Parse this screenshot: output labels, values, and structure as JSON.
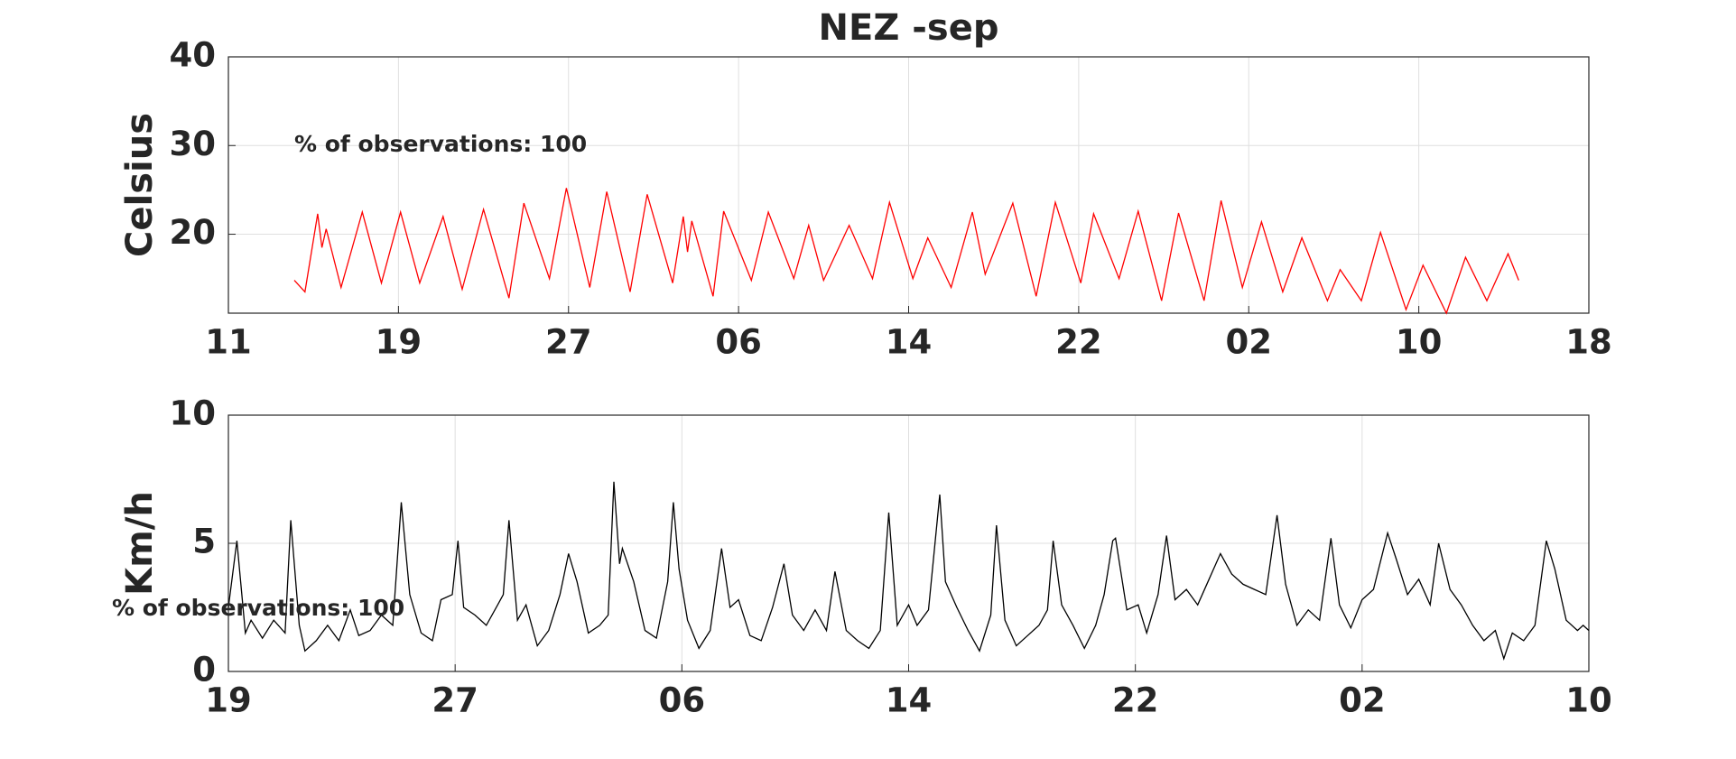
{
  "chart_data": [
    {
      "type": "line",
      "title": "NEZ -sep",
      "y_label": "Celsius",
      "annotation": "% of observations: 100",
      "color": "#ff0000",
      "grid": true,
      "xlim": [
        0,
        64
      ],
      "xticks": [
        {
          "value": 0,
          "label": "11"
        },
        {
          "value": 8,
          "label": "19"
        },
        {
          "value": 16,
          "label": "27"
        },
        {
          "value": 24,
          "label": "06"
        },
        {
          "value": 32,
          "label": "14"
        },
        {
          "value": 40,
          "label": "22"
        },
        {
          "value": 48,
          "label": "02"
        },
        {
          "value": 56,
          "label": "10"
        },
        {
          "value": 64,
          "label": "18"
        }
      ],
      "ylim": [
        11.1,
        40
      ],
      "yticks": [
        20,
        30,
        40
      ],
      "x": [
        3.1,
        3.6,
        4.2,
        4.4,
        4.6,
        5.3,
        6.3,
        7.2,
        8.1,
        9.0,
        10.1,
        11.0,
        12.0,
        13.2,
        13.9,
        15.1,
        15.9,
        17.0,
        17.8,
        18.9,
        19.7,
        20.9,
        21.4,
        21.6,
        21.8,
        22.8,
        23.3,
        24.6,
        25.4,
        26.6,
        27.3,
        28.0,
        29.2,
        30.3,
        31.1,
        32.2,
        32.9,
        34.0,
        35.0,
        35.6,
        36.9,
        38.0,
        38.9,
        40.1,
        40.7,
        41.9,
        42.8,
        43.9,
        44.7,
        45.9,
        46.7,
        47.7,
        48.6,
        49.6,
        50.5,
        51.7,
        52.3,
        53.3,
        54.2,
        55.4,
        56.2,
        57.3,
        58.2,
        59.2,
        60.2,
        60.7
      ],
      "values": [
        14.8,
        13.5,
        22.3,
        18.5,
        20.6,
        14,
        22.5,
        14.5,
        22.5,
        14.5,
        22,
        13.8,
        22.8,
        12.8,
        23.5,
        15,
        25.2,
        14,
        24.8,
        13.5,
        24.5,
        14.5,
        22,
        18,
        21.5,
        13,
        22.6,
        14.8,
        22.5,
        15,
        21,
        14.8,
        21,
        15,
        23.6,
        15,
        19.6,
        14,
        22.5,
        15.5,
        23.5,
        13,
        23.6,
        14.5,
        22.3,
        15,
        22.6,
        12.5,
        22.4,
        12.5,
        23.8,
        14,
        21.4,
        13.5,
        19.6,
        12.5,
        16,
        12.5,
        20.2,
        11.5,
        16.5,
        11.1,
        17.4,
        12.5,
        17.8,
        14.8
      ]
    },
    {
      "type": "line",
      "y_label": "Km/h",
      "annotation": "% of observations: 100",
      "color": "#000000",
      "grid": true,
      "xlim": [
        0,
        48
      ],
      "xticks": [
        {
          "value": 0,
          "label": "19"
        },
        {
          "value": 8,
          "label": "27"
        },
        {
          "value": 16,
          "label": "06"
        },
        {
          "value": 24,
          "label": "14"
        },
        {
          "value": 32,
          "label": "22"
        },
        {
          "value": 40,
          "label": "02"
        },
        {
          "value": 48,
          "label": "10"
        }
      ],
      "ylim": [
        0,
        10
      ],
      "yticks": [
        0,
        5,
        10
      ],
      "x": [
        0,
        0.3,
        0.6,
        0.8,
        1.2,
        1.6,
        2.0,
        2.2,
        2.5,
        2.7,
        3.1,
        3.5,
        3.9,
        4.3,
        4.6,
        5.0,
        5.4,
        5.8,
        6.1,
        6.4,
        6.8,
        7.2,
        7.5,
        7.9,
        8.1,
        8.3,
        8.7,
        9.1,
        9.5,
        9.7,
        9.9,
        10.2,
        10.5,
        10.9,
        11.3,
        11.7,
        12.0,
        12.3,
        12.7,
        13.1,
        13.4,
        13.6,
        13.8,
        13.9,
        14.3,
        14.7,
        15.1,
        15.5,
        15.7,
        15.9,
        16.2,
        16.6,
        17.0,
        17.4,
        17.7,
        18.0,
        18.4,
        18.8,
        19.2,
        19.6,
        19.9,
        20.3,
        20.7,
        21.1,
        21.4,
        21.8,
        22.2,
        22.6,
        23.0,
        23.3,
        23.6,
        24.0,
        24.3,
        24.7,
        25.1,
        25.3,
        25.7,
        26.1,
        26.5,
        26.9,
        27.1,
        27.4,
        27.8,
        28.2,
        28.6,
        28.9,
        29.1,
        29.4,
        29.8,
        30.2,
        30.6,
        30.9,
        31.2,
        31.3,
        31.7,
        32.1,
        32.4,
        32.8,
        33.1,
        33.4,
        33.8,
        34.2,
        34.6,
        35.0,
        35.4,
        35.8,
        36.2,
        36.6,
        37.0,
        37.3,
        37.7,
        38.1,
        38.5,
        38.9,
        39.2,
        39.6,
        40.0,
        40.4,
        40.9,
        41.2,
        41.6,
        42.0,
        42.4,
        42.7,
        43.1,
        43.5,
        43.9,
        44.3,
        44.7,
        45.0,
        45.3,
        45.7,
        46.1,
        46.5,
        46.8,
        47.2,
        47.6,
        47.8,
        48.0
      ],
      "values": [
        2.5,
        5.1,
        1.5,
        2.0,
        1.3,
        2.0,
        1.5,
        5.9,
        1.8,
        0.8,
        1.2,
        1.8,
        1.2,
        2.4,
        1.4,
        1.6,
        2.2,
        1.8,
        6.6,
        3.0,
        1.5,
        1.2,
        2.8,
        3.0,
        5.1,
        2.5,
        2.2,
        1.8,
        2.6,
        3.0,
        5.9,
        2.0,
        2.6,
        1.0,
        1.6,
        3.0,
        4.6,
        3.5,
        1.5,
        1.8,
        2.2,
        7.4,
        4.2,
        4.8,
        3.5,
        1.6,
        1.3,
        3.5,
        6.6,
        4.0,
        2.0,
        0.9,
        1.6,
        4.8,
        2.5,
        2.8,
        1.4,
        1.2,
        2.5,
        4.2,
        2.2,
        1.6,
        2.4,
        1.6,
        3.9,
        1.6,
        1.2,
        0.9,
        1.6,
        6.2,
        1.8,
        2.6,
        1.8,
        2.4,
        6.9,
        3.5,
        2.5,
        1.6,
        0.8,
        2.2,
        5.7,
        2.0,
        1.0,
        1.4,
        1.8,
        2.4,
        5.1,
        2.6,
        1.8,
        0.9,
        1.8,
        3.0,
        5.1,
        5.2,
        2.4,
        2.6,
        1.5,
        3.0,
        5.3,
        2.8,
        3.2,
        2.6,
        3.6,
        4.6,
        3.8,
        3.4,
        3.2,
        3.0,
        6.1,
        3.4,
        1.8,
        2.4,
        2.0,
        5.2,
        2.6,
        1.7,
        2.8,
        3.2,
        5.4,
        4.4,
        3.0,
        3.6,
        2.6,
        5.0,
        3.2,
        2.6,
        1.8,
        1.2,
        1.6,
        0.5,
        1.5,
        1.2,
        1.8,
        5.1,
        4.0,
        2.0,
        1.6,
        1.8,
        1.6
      ]
    }
  ]
}
